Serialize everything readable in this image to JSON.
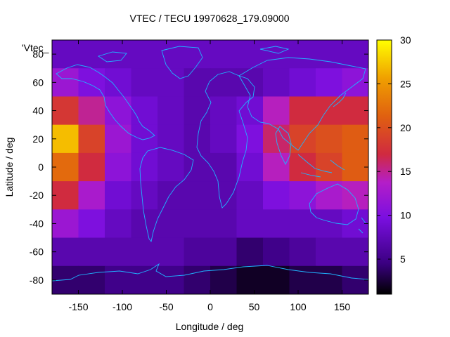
{
  "chart_data": {
    "type": "heatmap",
    "title": "VTEC / TECU 19970628_179.09000",
    "xlabel": "Longitude / deg",
    "ylabel": "Latitude / deg",
    "key_label": "'Vtec_",
    "xlim": [
      -180,
      180
    ],
    "ylim": [
      -90,
      90
    ],
    "x_ticks": [
      -150,
      -100,
      -50,
      0,
      50,
      100,
      150
    ],
    "y_ticks": [
      -80,
      -60,
      -40,
      -20,
      0,
      20,
      40,
      60,
      80
    ],
    "colorbar": {
      "range": [
        1,
        30
      ],
      "ticks": [
        5,
        10,
        15,
        20,
        25,
        30
      ]
    },
    "grid": false,
    "colors": {
      "coastline": "#1fb4ff",
      "axis": "#000000"
    },
    "lat_rows": [
      80,
      60,
      40,
      20,
      0,
      -20,
      -40,
      -60,
      -80
    ],
    "lon_cols": [
      -165,
      -135,
      -105,
      -75,
      -45,
      -15,
      15,
      45,
      75,
      105,
      135,
      165
    ],
    "values": [
      [
        8,
        8,
        8,
        8,
        8,
        8,
        8,
        8,
        8,
        8,
        8,
        8
      ],
      [
        12,
        10,
        9,
        8,
        8,
        7,
        7,
        7,
        8,
        9,
        10,
        11
      ],
      [
        18,
        15,
        11,
        9,
        8,
        7,
        8,
        9,
        14,
        17,
        17,
        17
      ],
      [
        27,
        19,
        12,
        9,
        8,
        7,
        8,
        10,
        16,
        19,
        20,
        21
      ],
      [
        22,
        17,
        11,
        9,
        8,
        7,
        7,
        9,
        14,
        17,
        19,
        21
      ],
      [
        17,
        13,
        9,
        8,
        7,
        7,
        7,
        8,
        10,
        11,
        13,
        14
      ],
      [
        12,
        10,
        8,
        7,
        7,
        7,
        7,
        8,
        8,
        8,
        8,
        9
      ],
      [
        7,
        7,
        7,
        7,
        7,
        6,
        6,
        4,
        5,
        6,
        7,
        7
      ],
      [
        4,
        4,
        5,
        5,
        5,
        4,
        3,
        2,
        2,
        3,
        3,
        4
      ]
    ]
  }
}
